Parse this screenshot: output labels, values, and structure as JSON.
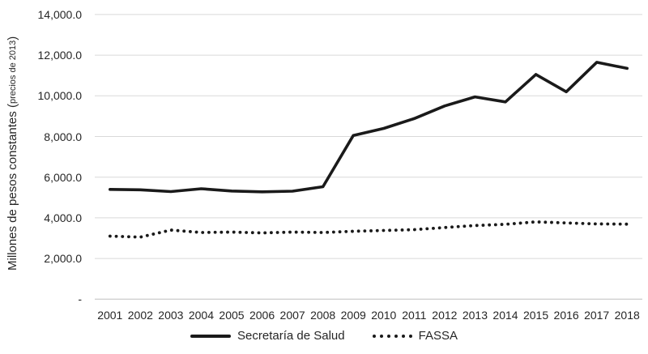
{
  "chart_data": {
    "type": "line",
    "title": "",
    "ylabel_main": "Millones de pesos constantes (",
    "ylabel_small": "precios de 2013",
    "ylabel_close": ")",
    "xlabel": "",
    "categories": [
      "2001",
      "2002",
      "2003",
      "2004",
      "2005",
      "2006",
      "2007",
      "2008",
      "2009",
      "2010",
      "2011",
      "2012",
      "2013",
      "2014",
      "2015",
      "2016",
      "2017",
      "2018"
    ],
    "series": [
      {
        "name": "Secretaría de Salud",
        "line_style": "solid",
        "color": "#1a1a1a",
        "values": [
          5400,
          5380,
          5290,
          5430,
          5320,
          5280,
          5310,
          5530,
          8050,
          8400,
          8880,
          9500,
          9950,
          9700,
          11050,
          10200,
          11650,
          11350
        ]
      },
      {
        "name": "FASSA",
        "line_style": "dotted",
        "color": "#1a1a1a",
        "values": [
          3100,
          3050,
          3400,
          3280,
          3300,
          3260,
          3300,
          3280,
          3340,
          3380,
          3420,
          3520,
          3620,
          3680,
          3800,
          3750,
          3700,
          3690
        ]
      }
    ],
    "ylim": [
      0,
      14000
    ],
    "ytick_step": 2000,
    "yticks": [
      {
        "value": 14000,
        "label": "14,000.0"
      },
      {
        "value": 12000,
        "label": "12,000.0"
      },
      {
        "value": 10000,
        "label": "10,000.0"
      },
      {
        "value": 8000,
        "label": "8,000.0"
      },
      {
        "value": 6000,
        "label": "6,000.0"
      },
      {
        "value": 4000,
        "label": "4,000.0"
      },
      {
        "value": 2000,
        "label": "2,000.0"
      },
      {
        "value": 0,
        "label": "-"
      }
    ],
    "grid": true,
    "legend_position": "bottom",
    "colors": {
      "gridline": "#d9d9d9",
      "axis_line": "#c0c0c0",
      "text": "#262626",
      "series": "#1a1a1a",
      "background": "#ffffff"
    }
  }
}
